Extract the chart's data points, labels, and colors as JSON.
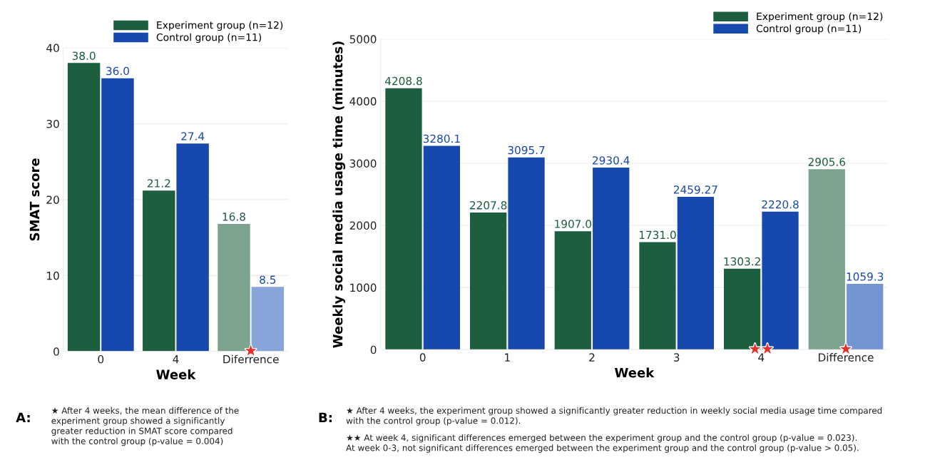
{
  "chart_data": [
    {
      "type": "bar",
      "xlabel": "Week",
      "ylabel": "SMAT score",
      "categories": [
        "0",
        "4",
        "Diferrence"
      ],
      "ylim": [
        0,
        40
      ],
      "yticks": [
        0,
        10,
        20,
        30,
        40
      ],
      "grid": "y",
      "legend": "top right",
      "series": [
        {
          "name": "Experiment group (n=12)",
          "color": "#1c5e3e",
          "colors": [
            "#1c5e3e",
            "#1c5e3e",
            "#7ba38d"
          ],
          "values": [
            38,
            21.2,
            16.8
          ],
          "value_labels": [
            "38.0",
            "21.2",
            "16.8"
          ]
        },
        {
          "name": "Control group (n=11)",
          "color": "#1748ad",
          "colors": [
            "#1748ad",
            "#1748ad",
            "#87a5d8"
          ],
          "values": [
            36,
            27.4,
            8.5
          ],
          "value_labels": [
            "36.0",
            "27.4",
            "8.5"
          ]
        }
      ],
      "annotations": [
        {
          "text": "★",
          "x": "Diferrence",
          "y": 0
        },
        "A:",
        "★ After 4 weeks, the mean difference of the\nexperiment group showed a significantly\ngreater reduction in SMAT score compared\nwith the control group (p-value = 0.004)"
      ]
    },
    {
      "type": "bar",
      "xlabel": "Week",
      "ylabel": "Weekly social media usage time (minutes)",
      "categories": [
        "0",
        "1",
        "2",
        "3",
        "4",
        "Difference"
      ],
      "ylim": [
        0,
        5000
      ],
      "yticks": [
        0,
        1000,
        2000,
        3000,
        4000,
        5000
      ],
      "grid": "y",
      "legend": "top right",
      "series": [
        {
          "name": "Experiment group (n=12)",
          "color": "#1c5e3e",
          "colors": [
            "#1c5e3e",
            "#1c5e3e",
            "#1c5e3e",
            "#1c5e3e",
            "#1c5e3e",
            "#7ba38d"
          ],
          "values": [
            4208.8,
            2207.8,
            1907,
            1731,
            1303.2,
            2905.6
          ],
          "value_labels": [
            "4208.8",
            "2207.8",
            "1907.0",
            "1731.0",
            "1303.2",
            "2905.6"
          ]
        },
        {
          "name": "Control group (n=11)",
          "color": "#1748ad",
          "colors": [
            "#1748ad",
            "#1748ad",
            "#1748ad",
            "#1748ad",
            "#1748ad",
            "#7395d2"
          ],
          "values": [
            3280.1,
            3095.7,
            2930.4,
            2459.27,
            2220.8,
            1059.3
          ],
          "value_labels": [
            "3280.1",
            "3095.7",
            "2930.4",
            "2459.27",
            "2220.8",
            "1059.3"
          ]
        }
      ],
      "annotations": [
        {
          "text": "★★",
          "x": "4",
          "y": 0
        },
        {
          "text": "★",
          "x": "Difference",
          "y": 0
        },
        "B:",
        "★ After 4 weeks, the experiment group showed a significantly greater reduction in weekly social media usage time compared\nwith the control group (p-value = 0.012).",
        "★★ At week 4, significant differences emerged between the experiment group and the control group (p-value = 0.023).\nAt week 0-3, not significant differences emerged between the experiment group and the control group (p-value > 0.05)."
      ]
    }
  ]
}
